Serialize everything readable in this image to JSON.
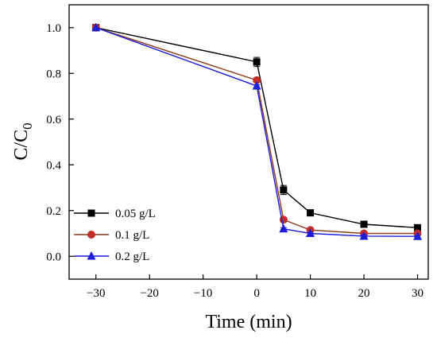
{
  "chart_data": {
    "type": "line",
    "title": "",
    "xlabel": "Time (min)",
    "ylabel_main": "C/C",
    "ylabel_sub": "0",
    "xlim": [
      -35,
      32
    ],
    "ylim": [
      -0.1,
      1.1
    ],
    "x_ticks": [
      -30,
      -20,
      -10,
      0,
      10,
      20,
      30
    ],
    "x_tick_labels": [
      "−30",
      "−20",
      "−10",
      "0",
      "10",
      "20",
      "30"
    ],
    "y_ticks": [
      0.0,
      0.2,
      0.4,
      0.6,
      0.8,
      1.0
    ],
    "y_tick_labels": [
      "0.0",
      "0.2",
      "0.4",
      "0.6",
      "0.8",
      "1.0"
    ],
    "grid": false,
    "legend_position": "bottom-left",
    "x": [
      -30,
      0,
      5,
      10,
      20,
      30
    ],
    "series": [
      {
        "name": "0.05 g/L",
        "color": "#000000",
        "marker": "square",
        "values": [
          1.0,
          0.85,
          0.29,
          0.19,
          0.14,
          0.125
        ],
        "errors": [
          0.0,
          0.02,
          0.02,
          0.01,
          0.01,
          0.01
        ]
      },
      {
        "name": "0.1 g/L",
        "color": "#8b3a1e",
        "marker_color": "#c0302a",
        "marker": "circle",
        "values": [
          1.0,
          0.77,
          0.16,
          0.115,
          0.1,
          0.1
        ],
        "errors": [
          0.0,
          0.01,
          0.01,
          0.005,
          0.005,
          0.005
        ]
      },
      {
        "name": "0.2 g/L",
        "color": "#1c1cdc",
        "marker": "triangle",
        "values": [
          1.0,
          0.745,
          0.12,
          0.1,
          0.088,
          0.087
        ],
        "errors": [
          0.0,
          0.005,
          0.005,
          0.005,
          0.005,
          0.005
        ]
      }
    ]
  }
}
